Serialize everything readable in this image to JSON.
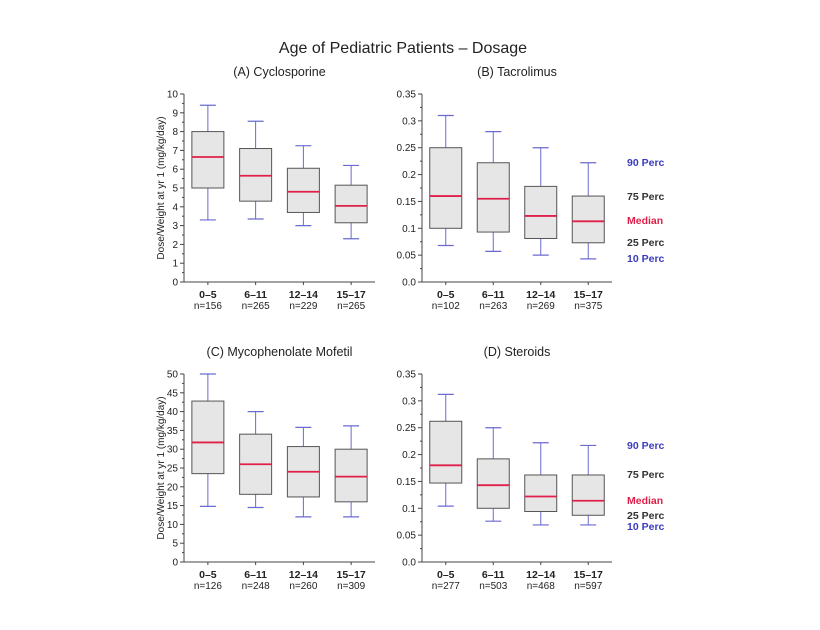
{
  "figure": {
    "title": "Age of Pediatric Patients – Dosage",
    "ylabel": "Dose/Weight at yr 1 (mg/kg/day)"
  },
  "legend": {
    "p90": "90 Perc",
    "p75": "75 Perc",
    "median": "Median",
    "p25": "25 Perc",
    "p10": "10 Perc",
    "colors": {
      "p90": "#3b3bbf",
      "p75": "#333333",
      "median": "#e0204a",
      "p25": "#333333",
      "p10": "#3b3bbf"
    }
  },
  "colors": {
    "box_fill": "#e6e6e6",
    "box_stroke": "#555555",
    "whisker": "#6a6ad0",
    "median": "#e0204a"
  },
  "chart_data": [
    {
      "type": "box",
      "title": "(A) Cyclosporine",
      "ylim": [
        0,
        10
      ],
      "yticks": [
        "0",
        "1",
        "2",
        "3",
        "4",
        "5",
        "6",
        "7",
        "8",
        "9",
        "10"
      ],
      "categories": [
        "0–5",
        "6–11",
        "12–14",
        "15–17"
      ],
      "n_labels": [
        "n=156",
        "n=265",
        "n=229",
        "n=265"
      ],
      "p10": [
        3.3,
        3.35,
        3.0,
        2.3
      ],
      "p25": [
        5.0,
        4.3,
        3.7,
        3.15
      ],
      "median": [
        6.65,
        5.65,
        4.8,
        4.05
      ],
      "p75": [
        8.0,
        7.1,
        6.05,
        5.15
      ],
      "p90": [
        9.4,
        8.55,
        7.25,
        6.2
      ]
    },
    {
      "type": "box",
      "title": "(B) Tacrolimus",
      "ylim": [
        0,
        0.35
      ],
      "yticks": [
        "0.0",
        "0.05",
        "0.1",
        "0.15",
        "0.2",
        "0.25",
        "0.3",
        "0.35"
      ],
      "categories": [
        "0–5",
        "6–11",
        "12–14",
        "15–17"
      ],
      "n_labels": [
        "n=102",
        "n=263",
        "n=269",
        "n=375"
      ],
      "p10": [
        0.068,
        0.057,
        0.05,
        0.043
      ],
      "p25": [
        0.1,
        0.093,
        0.081,
        0.073
      ],
      "median": [
        0.16,
        0.155,
        0.123,
        0.113
      ],
      "p75": [
        0.25,
        0.222,
        0.178,
        0.16
      ],
      "p90": [
        0.31,
        0.28,
        0.25,
        0.222
      ]
    },
    {
      "type": "box",
      "title": "(C) Mycophenolate Mofetil",
      "ylim": [
        0,
        50
      ],
      "yticks": [
        "0",
        "5",
        "10",
        "15",
        "20",
        "25",
        "30",
        "35",
        "40",
        "45",
        "50"
      ],
      "categories": [
        "0–5",
        "6–11",
        "12–14",
        "15–17"
      ],
      "n_labels": [
        "n=126",
        "n=248",
        "n=260",
        "n=309"
      ],
      "p10": [
        14.8,
        14.5,
        12.0,
        12.0
      ],
      "p25": [
        23.5,
        18.0,
        17.3,
        16.0
      ],
      "median": [
        31.8,
        26.0,
        24.0,
        22.7
      ],
      "p75": [
        42.8,
        34.0,
        30.7,
        30.0
      ],
      "p90": [
        50.0,
        40.0,
        35.8,
        36.2
      ]
    },
    {
      "type": "box",
      "title": "(D) Steroids",
      "ylim": [
        0,
        0.35
      ],
      "yticks": [
        "0.0",
        "0.05",
        "0.1",
        "0.15",
        "0.2",
        "0.25",
        "0.3",
        "0.35"
      ],
      "categories": [
        "0–5",
        "6–11",
        "12–14",
        "15–17"
      ],
      "n_labels": [
        "n=277",
        "n=503",
        "n=468",
        "n=597"
      ],
      "p10": [
        0.104,
        0.076,
        0.069,
        0.069
      ],
      "p25": [
        0.147,
        0.1,
        0.094,
        0.087
      ],
      "median": [
        0.18,
        0.143,
        0.122,
        0.114
      ],
      "p75": [
        0.262,
        0.192,
        0.162,
        0.162
      ],
      "p90": [
        0.312,
        0.25,
        0.222,
        0.217
      ]
    }
  ]
}
